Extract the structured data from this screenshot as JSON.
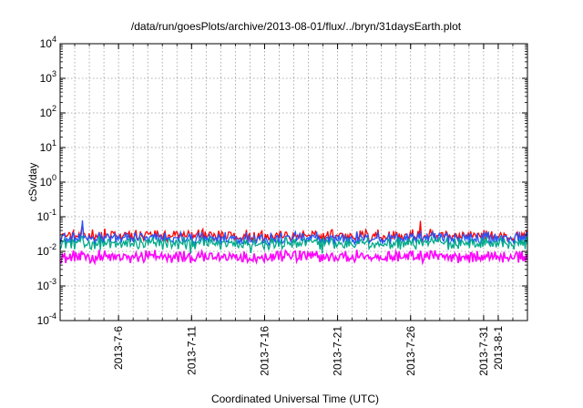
{
  "chart_data": {
    "type": "line",
    "title": "/data/run/goesPlots/archive/2013-08-01/flux/../bryn/31daysEarth.plot",
    "xlabel": "Coordinated Universal Time (UTC)",
    "ylabel": "cSv/day",
    "y_scale": "log",
    "ylim": [
      0.0001,
      10000
    ],
    "y_ticks": [
      {
        "base": "10",
        "exp": "-4",
        "value": 0.0001
      },
      {
        "base": "10",
        "exp": "-3",
        "value": 0.001
      },
      {
        "base": "10",
        "exp": "-2",
        "value": 0.01
      },
      {
        "base": "10",
        "exp": "-1",
        "value": 0.1
      },
      {
        "base": "10",
        "exp": "0",
        "value": 1
      },
      {
        "base": "10",
        "exp": "1",
        "value": 10
      },
      {
        "base": "10",
        "exp": "2",
        "value": 100
      },
      {
        "base": "10",
        "exp": "3",
        "value": 1000
      },
      {
        "base": "10",
        "exp": "4",
        "value": 10000
      }
    ],
    "xlim": [
      "2013-07-02",
      "2013-08-03"
    ],
    "x_ticks": [
      "2013-7-6",
      "2013-7-11",
      "2013-7-16",
      "2013-7-21",
      "2013-7-26",
      "2013-7-31",
      "2013-8-1"
    ],
    "grid": true,
    "legend": "none",
    "series": [
      {
        "color": "#ff0000",
        "typical": 0.028,
        "min": 0.02,
        "max": 0.085
      },
      {
        "color": "#2255ff",
        "typical": 0.024,
        "min": 0.015,
        "max": 0.08
      },
      {
        "color": "#00aa88",
        "typical": 0.017,
        "min": 0.008,
        "max": 0.04
      },
      {
        "color": "#ff00ff",
        "typical": 0.007,
        "min": 0.0035,
        "max": 0.028
      }
    ]
  }
}
